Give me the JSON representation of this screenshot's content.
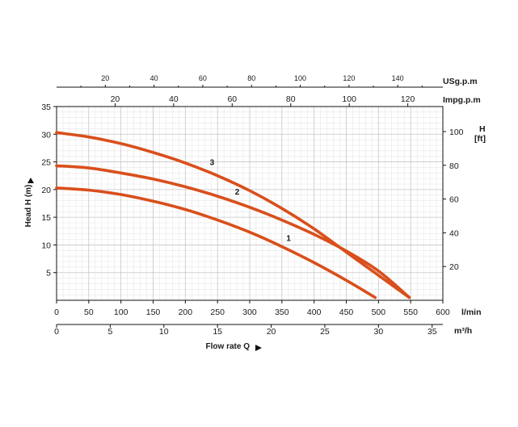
{
  "chart_data": {
    "type": "line",
    "x_axis": {
      "unit": "l/min",
      "range": [
        0,
        600
      ],
      "ticks": [
        "0",
        "50",
        "100",
        "150",
        "200",
        "250",
        "300",
        "350",
        "400",
        "450",
        "500",
        "550",
        "600"
      ]
    },
    "y_axis": {
      "label": "Head H (m)",
      "range": [
        0,
        35
      ],
      "ticks": [
        "5",
        "10",
        "15",
        "20",
        "25",
        "30",
        "35"
      ]
    },
    "x_axis_m3h": {
      "unit": "m³/h",
      "range": [
        0,
        36
      ],
      "ticks": [
        "0",
        "5",
        "10",
        "15",
        "20",
        "25",
        "30",
        "35"
      ]
    },
    "x_axis_us_gpm": {
      "unit": "USg.p.m",
      "ticks": [
        "20",
        "40",
        "60",
        "80",
        "100",
        "120",
        "140"
      ]
    },
    "x_axis_imp_gpm": {
      "unit": "Impg.p.m",
      "ticks": [
        "20",
        "40",
        "60",
        "80",
        "100",
        "120"
      ]
    },
    "y_axis_ft": {
      "unit_line1": "H",
      "unit_line2": "[ft]",
      "ticks": [
        "20",
        "40",
        "60",
        "80",
        "100"
      ]
    },
    "xlabel": "Flow rate Q",
    "grid": true,
    "series": [
      {
        "name": "1",
        "x": [
          0,
          50,
          100,
          150,
          200,
          250,
          300,
          350,
          400,
          450,
          495
        ],
        "y": [
          20.3,
          19.9,
          19.1,
          17.9,
          16.4,
          14.5,
          12.3,
          9.7,
          6.8,
          3.6,
          0.5
        ]
      },
      {
        "name": "2",
        "x": [
          0,
          50,
          100,
          150,
          200,
          250,
          300,
          350,
          400,
          450,
          500,
          548
        ],
        "y": [
          24.3,
          23.9,
          23.0,
          21.9,
          20.5,
          18.8,
          16.8,
          14.5,
          11.9,
          8.9,
          5.3,
          0.5
        ]
      },
      {
        "name": "3",
        "x": [
          0,
          50,
          100,
          150,
          200,
          250,
          300,
          350,
          400,
          450,
          500,
          548
        ],
        "y": [
          30.3,
          29.5,
          28.3,
          26.7,
          24.8,
          22.5,
          19.8,
          16.6,
          12.9,
          8.7,
          4.5,
          0.5
        ]
      }
    ]
  }
}
